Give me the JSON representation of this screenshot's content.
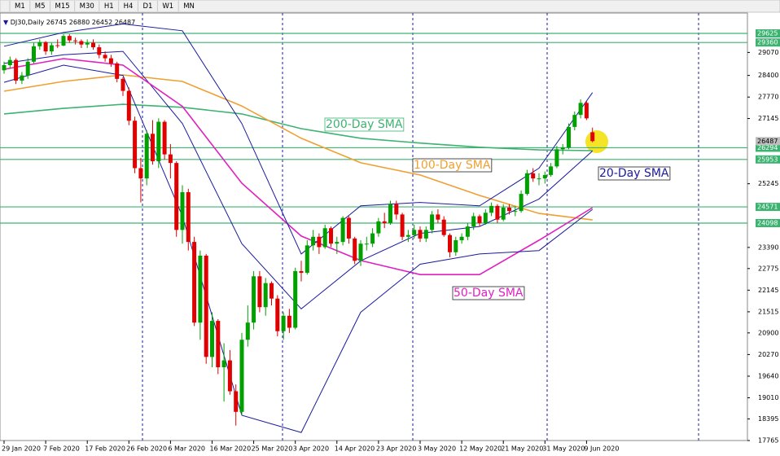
{
  "toolbar": [
    "M1",
    "M5",
    "M15",
    "M30",
    "H1",
    "H4",
    "D1",
    "W1",
    "MN"
  ],
  "chart_data": {
    "type": "candlestick",
    "symbol": "DJ30,Daily",
    "categories": [
      "29 Jan 2020",
      null,
      null,
      null,
      null,
      null,
      null,
      "7 Feb 2020",
      null,
      null,
      null,
      null,
      null,
      null,
      "17 Feb 2020",
      null,
      null,
      null,
      null,
      null,
      null,
      "26 Feb 2020",
      null,
      null,
      null,
      null,
      null,
      null,
      "6 Mar 2020",
      null,
      null,
      null,
      null,
      null,
      null,
      "16 Mar 2020",
      null,
      null,
      null,
      null,
      null,
      null,
      "25 Mar 2020",
      null,
      null,
      null,
      null,
      null,
      null,
      "3 Apr 2020",
      null,
      null,
      null,
      null,
      null,
      null,
      "14 Apr 2020",
      null,
      null,
      null,
      null,
      null,
      null,
      "23 Apr 2020",
      null,
      null,
      null,
      null,
      null,
      null,
      "3 May 2020",
      null,
      null,
      null,
      null,
      null,
      null,
      "12 May 2020",
      null,
      null,
      null,
      null,
      null,
      null,
      "21 May 2020",
      null,
      null,
      null,
      null,
      null,
      null,
      "31 May 2020",
      null,
      null,
      null,
      null,
      null,
      null,
      "9 Jun 2020",
      null
    ],
    "candles": [
      [
        28550,
        28800,
        28450,
        28700
      ],
      [
        28700,
        28950,
        28600,
        28850
      ],
      [
        28850,
        28900,
        28150,
        28250
      ],
      [
        28250,
        28500,
        28150,
        28400
      ],
      [
        28400,
        28900,
        28300,
        28800
      ],
      [
        28800,
        29350,
        28750,
        29250
      ],
      [
        29250,
        29450,
        29150,
        29370
      ],
      [
        29370,
        29400,
        29000,
        29100
      ],
      [
        29100,
        29350,
        29000,
        29280
      ],
      [
        29280,
        29450,
        29200,
        29270
      ],
      [
        29270,
        29600,
        29250,
        29550
      ],
      [
        29550,
        29600,
        29350,
        29420
      ],
      [
        29420,
        29500,
        29300,
        29400
      ],
      [
        29400,
        29450,
        29200,
        29300
      ],
      [
        29300,
        29450,
        29200,
        29350
      ],
      [
        29350,
        29450,
        29150,
        29220
      ],
      [
        29220,
        29300,
        28900,
        29000
      ],
      [
        29000,
        29100,
        28800,
        28900
      ],
      [
        28900,
        29000,
        28650,
        28750
      ],
      [
        28750,
        28800,
        28200,
        28300
      ],
      [
        28300,
        28350,
        27800,
        27950
      ],
      [
        27950,
        28050,
        26950,
        27080
      ],
      [
        27080,
        27200,
        25550,
        25700
      ],
      [
        25700,
        26000,
        24700,
        25400
      ],
      [
        25400,
        26800,
        25200,
        26700
      ],
      [
        26700,
        27100,
        25800,
        25900
      ],
      [
        25900,
        27150,
        25700,
        27050
      ],
      [
        27050,
        27100,
        25950,
        26100
      ],
      [
        26100,
        26400,
        25400,
        25850
      ],
      [
        25850,
        25900,
        23700,
        23900
      ],
      [
        23900,
        25200,
        23500,
        25000
      ],
      [
        25000,
        25100,
        23300,
        23550
      ],
      [
        23550,
        23700,
        21100,
        21200
      ],
      [
        21200,
        23300,
        20700,
        23150
      ],
      [
        23150,
        23200,
        20000,
        20200
      ],
      [
        20200,
        21500,
        19900,
        21250
      ],
      [
        21250,
        21300,
        19700,
        19900
      ],
      [
        19900,
        20600,
        18900,
        20100
      ],
      [
        20100,
        20400,
        19100,
        19200
      ],
      [
        19200,
        19400,
        18200,
        18600
      ],
      [
        18600,
        20900,
        18500,
        20700
      ],
      [
        20700,
        21700,
        20500,
        21200
      ],
      [
        21200,
        22700,
        21000,
        22550
      ],
      [
        22550,
        22700,
        21500,
        21650
      ],
      [
        21650,
        22500,
        21400,
        22350
      ],
      [
        22350,
        22400,
        21700,
        21900
      ],
      [
        21900,
        22000,
        20800,
        20950
      ],
      [
        20950,
        21500,
        20700,
        21400
      ],
      [
        21400,
        21600,
        20900,
        21050
      ],
      [
        21050,
        22800,
        21000,
        22700
      ],
      [
        22700,
        23000,
        22400,
        22650
      ],
      [
        22650,
        23600,
        22600,
        23450
      ],
      [
        23450,
        23900,
        23300,
        23700
      ],
      [
        23700,
        23800,
        23200,
        23400
      ],
      [
        23400,
        24050,
        23350,
        23950
      ],
      [
        23950,
        24000,
        23400,
        23500
      ],
      [
        23500,
        23700,
        23200,
        23550
      ],
      [
        23550,
        24300,
        23450,
        24250
      ],
      [
        24250,
        24300,
        23500,
        23650
      ],
      [
        23650,
        23700,
        22900,
        23000
      ],
      [
        23000,
        23600,
        22850,
        23500
      ],
      [
        23500,
        23700,
        23300,
        23500
      ],
      [
        23500,
        23950,
        23400,
        23800
      ],
      [
        23800,
        24250,
        23700,
        24150
      ],
      [
        24150,
        24400,
        23950,
        24100
      ],
      [
        24100,
        24750,
        24050,
        24650
      ],
      [
        24650,
        24750,
        24200,
        24350
      ],
      [
        24350,
        24400,
        23600,
        23700
      ],
      [
        23700,
        23900,
        23550,
        23750
      ],
      [
        23750,
        24050,
        23650,
        23900
      ],
      [
        23900,
        24000,
        23550,
        23650
      ],
      [
        23650,
        24000,
        23550,
        23900
      ],
      [
        23900,
        24450,
        23800,
        24350
      ],
      [
        24350,
        24500,
        24100,
        24200
      ],
      [
        24200,
        24300,
        23700,
        23750
      ],
      [
        23750,
        23800,
        23100,
        23250
      ],
      [
        23250,
        23700,
        23150,
        23600
      ],
      [
        23600,
        23800,
        23500,
        23700
      ],
      [
        23700,
        24100,
        23600,
        24000
      ],
      [
        24000,
        24400,
        23900,
        24300
      ],
      [
        24300,
        24350,
        24000,
        24100
      ],
      [
        24100,
        24500,
        24050,
        24400
      ],
      [
        24400,
        24700,
        24300,
        24600
      ],
      [
        24600,
        24650,
        24100,
        24200
      ],
      [
        24200,
        24650,
        24150,
        24550
      ],
      [
        24550,
        24650,
        24350,
        24450
      ],
      [
        24450,
        24600,
        24300,
        24450
      ],
      [
        24450,
        25050,
        24400,
        24950
      ],
      [
        24950,
        25650,
        24900,
        25550
      ],
      [
        25550,
        25700,
        25300,
        25400
      ],
      [
        25400,
        25550,
        25200,
        25400
      ],
      [
        25400,
        25600,
        25250,
        25500
      ],
      [
        25500,
        25850,
        25450,
        25750
      ],
      [
        25750,
        26350,
        25700,
        26250
      ],
      [
        26250,
        26400,
        26100,
        26300
      ],
      [
        26300,
        27000,
        26250,
        26900
      ],
      [
        26900,
        27350,
        26800,
        27250
      ],
      [
        27250,
        27700,
        27150,
        27600
      ],
      [
        27600,
        27650,
        27100,
        27150
      ],
      [
        26745,
        26880,
        26452,
        26487
      ]
    ],
    "up_color": "#00a000",
    "down_color": "#e00000",
    "ylim": [
      17765,
      30123
    ],
    "yticks": [
      29070,
      28400,
      27770,
      27145,
      25245,
      23390,
      22775,
      22145,
      21515,
      20900,
      20270,
      19640,
      19010,
      18395,
      17765
    ],
    "levels": {
      "color": "#3cb371",
      "values": [
        29625,
        29360,
        26294,
        25953,
        24571,
        24098
      ]
    },
    "series": [
      {
        "name": "200-Day SMA",
        "color": "#3cb371",
        "x": [
          0,
          10,
          20,
          30,
          40,
          50,
          60,
          70,
          80,
          90,
          99
        ],
        "values": [
          27280,
          27440,
          27560,
          27470,
          27280,
          26850,
          26570,
          26430,
          26310,
          26230,
          26210
        ]
      },
      {
        "name": "100-Day SMA",
        "color": "#f0a030",
        "x": [
          0,
          10,
          20,
          30,
          40,
          50,
          60,
          70,
          80,
          90,
          99
        ],
        "values": [
          27940,
          28225,
          28415,
          28225,
          27510,
          26570,
          25855,
          25500,
          24905,
          24380,
          24190
        ]
      },
      {
        "name": "20-Day SMA",
        "color": "#1a1aa0",
        "x": [
          0,
          10,
          20,
          30,
          40,
          50,
          60,
          70,
          80,
          90,
          99
        ],
        "values": [
          28750,
          29000,
          29100,
          27000,
          23500,
          21600,
          23000,
          23800,
          24000,
          24800,
          26200
        ]
      },
      {
        "name": "50-Day SMA",
        "color": "#e020c0",
        "x": [
          0,
          10,
          20,
          30,
          40,
          50,
          60,
          70,
          80,
          90,
          99
        ],
        "values": [
          28580,
          28890,
          28700,
          27500,
          25260,
          23720,
          23010,
          22600,
          22600,
          23600,
          24550
        ]
      },
      {
        "color": "#1a1aa0",
        "x": [
          0,
          10,
          20,
          30,
          40,
          50,
          60,
          70,
          80,
          90,
          99
        ],
        "values": [
          29250,
          29650,
          29900,
          29700,
          27000,
          23200,
          24600,
          24700,
          24600,
          25700,
          27900
        ]
      },
      {
        "color": "#1a1aa0",
        "x": [
          0,
          10,
          20,
          30,
          40,
          50,
          60,
          70,
          80,
          90,
          99
        ],
        "values": [
          28200,
          28700,
          28400,
          24300,
          18500,
          18000,
          21500,
          22900,
          23200,
          23300,
          24500
        ]
      }
    ]
  }
}
